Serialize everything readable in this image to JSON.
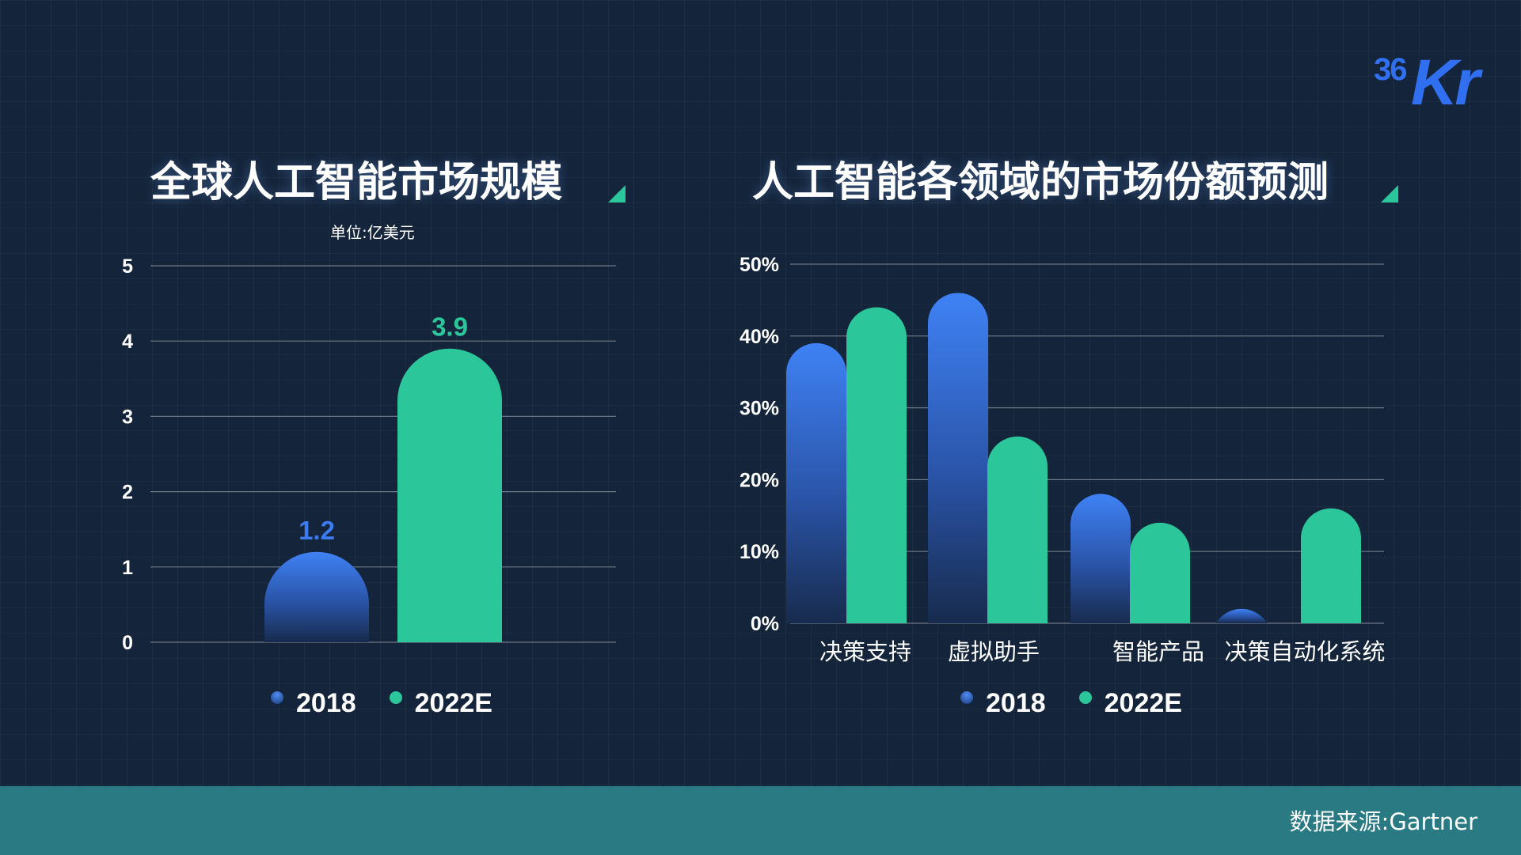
{
  "logo": {
    "num": "36",
    "kr": "Kr"
  },
  "left": {
    "title": "全球人工智能市场规模",
    "unit": "单位:亿美元"
  },
  "right": {
    "title": "人工智能各领域的市场份额预测"
  },
  "legend": {
    "s1": "2018",
    "s2": "2022E"
  },
  "footer": {
    "source": "数据来源:Gartner"
  },
  "colors": {
    "series_2018": "#3b7cf0",
    "series_2022E": "#2cc69b",
    "background": "#14253b",
    "footer": "#2a7a83"
  },
  "chart_data": [
    {
      "type": "bar",
      "title": "全球人工智能市场规模",
      "subtitle": "单位:亿美元",
      "categories": [
        "2018",
        "2022E"
      ],
      "values": [
        1.2,
        3.9
      ],
      "value_labels": [
        "1.2",
        "3.9"
      ],
      "ylim": [
        0,
        5
      ],
      "yticks": [
        0,
        1,
        2,
        3,
        4,
        5
      ],
      "ytick_labels": [
        "0",
        "1",
        "2",
        "3",
        "4",
        "5"
      ],
      "grid": true,
      "legend": "bottom"
    },
    {
      "type": "bar",
      "title": "人工智能各领域的市场份额预测",
      "categories": [
        "决策支持",
        "虚拟助手",
        "智能产品",
        "决策自动化系统"
      ],
      "series": [
        {
          "name": "2018",
          "values": [
            39,
            46,
            18,
            2
          ]
        },
        {
          "name": "2022E",
          "values": [
            44,
            26,
            14,
            16
          ]
        }
      ],
      "ylim": [
        0,
        50
      ],
      "yticks": [
        0,
        10,
        20,
        30,
        40,
        50
      ],
      "ytick_labels": [
        "0%",
        "10%",
        "20%",
        "30%",
        "40%",
        "50%"
      ],
      "grid": true,
      "legend": "bottom"
    }
  ]
}
